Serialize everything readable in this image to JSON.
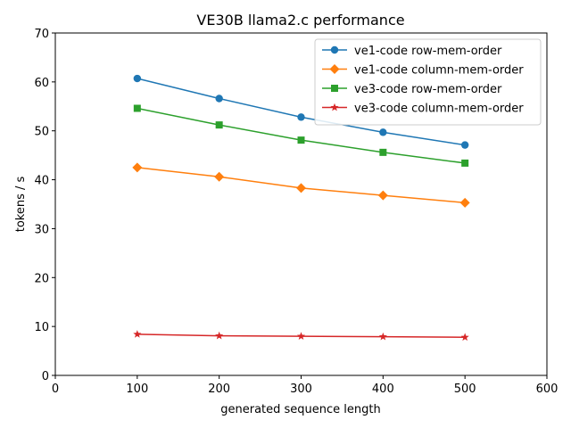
{
  "chart_data": {
    "type": "line",
    "title": "VE30B llama2.c performance",
    "xlabel": "generated sequence length",
    "ylabel": "tokens / s",
    "xlim": [
      0,
      600
    ],
    "ylim": [
      0,
      70
    ],
    "xticks": [
      0,
      100,
      200,
      300,
      400,
      500,
      600
    ],
    "yticks": [
      0,
      10,
      20,
      30,
      40,
      50,
      60,
      70
    ],
    "grid": false,
    "legend_position": "top-right",
    "x": [
      100,
      200,
      300,
      400,
      500
    ],
    "series": [
      {
        "name": "ve1-code row-mem-order",
        "color": "#1f77b4",
        "marker": "circle",
        "values": [
          60.7,
          56.6,
          52.8,
          49.7,
          47.1
        ]
      },
      {
        "name": "ve1-code column-mem-order",
        "color": "#ff7f0e",
        "marker": "diamond",
        "values": [
          42.5,
          40.6,
          38.3,
          36.8,
          35.3
        ]
      },
      {
        "name": "ve3-code row-mem-order",
        "color": "#2ca02c",
        "marker": "square",
        "values": [
          54.6,
          51.2,
          48.1,
          45.6,
          43.4
        ]
      },
      {
        "name": "ve3-code column-mem-order",
        "color": "#d62728",
        "marker": "star",
        "values": [
          8.4,
          8.1,
          8.0,
          7.9,
          7.8
        ]
      }
    ]
  }
}
